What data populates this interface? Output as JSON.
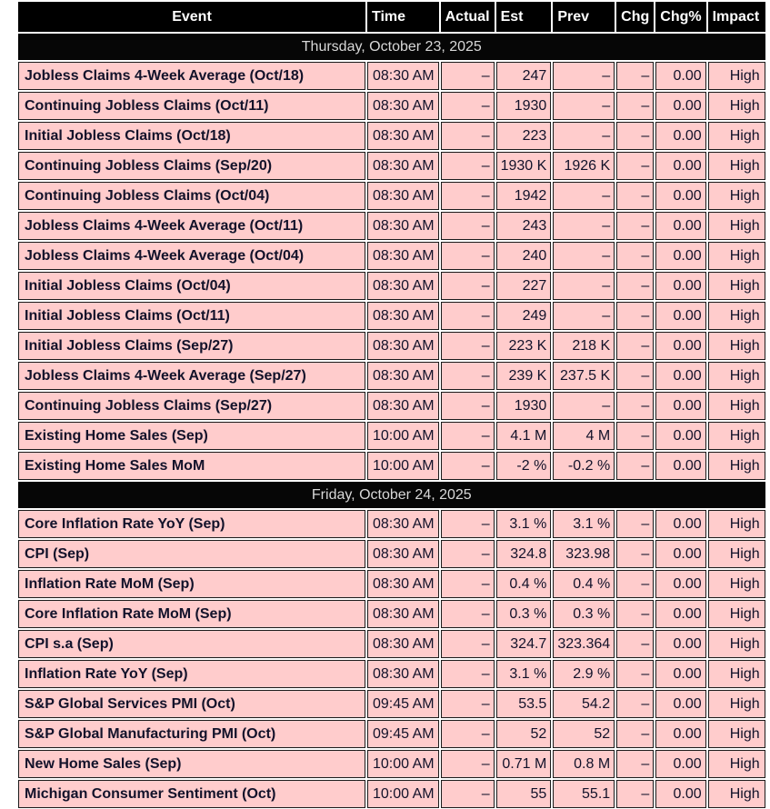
{
  "table": {
    "colors": {
      "header_bg": "#000000",
      "header_text": "#ffffff",
      "date_row_bg": "#060606",
      "date_row_text": "#d8d8d8",
      "row_bg": "#ffcccc",
      "row_text": "#12122a",
      "border": "#1b1b1b"
    },
    "columns": [
      {
        "key": "event",
        "label": "Event"
      },
      {
        "key": "time",
        "label": "Time"
      },
      {
        "key": "actual",
        "label": "Actual"
      },
      {
        "key": "est",
        "label": "Est"
      },
      {
        "key": "prev",
        "label": "Prev"
      },
      {
        "key": "chg",
        "label": "Chg"
      },
      {
        "key": "chg_pct",
        "label": "Chg%"
      },
      {
        "key": "impact",
        "label": "Impact"
      }
    ],
    "sections": [
      {
        "date_label": "Thursday, October 23, 2025",
        "rows": [
          {
            "event": "Jobless Claims 4-Week Average (Oct/18)",
            "time": "08:30 AM",
            "actual": "–",
            "est": "247",
            "prev": "–",
            "chg": "–",
            "chg_pct": "0.00",
            "impact": "High"
          },
          {
            "event": "Continuing Jobless Claims (Oct/11)",
            "time": "08:30 AM",
            "actual": "–",
            "est": "1930",
            "prev": "–",
            "chg": "–",
            "chg_pct": "0.00",
            "impact": "High"
          },
          {
            "event": "Initial Jobless Claims (Oct/18)",
            "time": "08:30 AM",
            "actual": "–",
            "est": "223",
            "prev": "–",
            "chg": "–",
            "chg_pct": "0.00",
            "impact": "High"
          },
          {
            "event": "Continuing Jobless Claims (Sep/20)",
            "time": "08:30 AM",
            "actual": "–",
            "est": "1930 K",
            "prev": "1926 K",
            "chg": "–",
            "chg_pct": "0.00",
            "impact": "High"
          },
          {
            "event": "Continuing Jobless Claims (Oct/04)",
            "time": "08:30 AM",
            "actual": "–",
            "est": "1942",
            "prev": "–",
            "chg": "–",
            "chg_pct": "0.00",
            "impact": "High"
          },
          {
            "event": "Jobless Claims 4-Week Average (Oct/11)",
            "time": "08:30 AM",
            "actual": "–",
            "est": "243",
            "prev": "–",
            "chg": "–",
            "chg_pct": "0.00",
            "impact": "High"
          },
          {
            "event": "Jobless Claims 4-Week Average (Oct/04)",
            "time": "08:30 AM",
            "actual": "–",
            "est": "240",
            "prev": "–",
            "chg": "–",
            "chg_pct": "0.00",
            "impact": "High"
          },
          {
            "event": "Initial Jobless Claims (Oct/04)",
            "time": "08:30 AM",
            "actual": "–",
            "est": "227",
            "prev": "–",
            "chg": "–",
            "chg_pct": "0.00",
            "impact": "High"
          },
          {
            "event": "Initial Jobless Claims (Oct/11)",
            "time": "08:30 AM",
            "actual": "–",
            "est": "249",
            "prev": "–",
            "chg": "–",
            "chg_pct": "0.00",
            "impact": "High"
          },
          {
            "event": "Initial Jobless Claims (Sep/27)",
            "time": "08:30 AM",
            "actual": "–",
            "est": "223 K",
            "prev": "218 K",
            "chg": "–",
            "chg_pct": "0.00",
            "impact": "High"
          },
          {
            "event": "Jobless Claims 4-Week Average (Sep/27)",
            "time": "08:30 AM",
            "actual": "–",
            "est": "239 K",
            "prev": "237.5 K",
            "chg": "–",
            "chg_pct": "0.00",
            "impact": "High"
          },
          {
            "event": "Continuing Jobless Claims (Sep/27)",
            "time": "08:30 AM",
            "actual": "–",
            "est": "1930",
            "prev": "–",
            "chg": "–",
            "chg_pct": "0.00",
            "impact": "High"
          },
          {
            "event": "Existing Home Sales (Sep)",
            "time": "10:00 AM",
            "actual": "–",
            "est": "4.1 M",
            "prev": "4 M",
            "chg": "–",
            "chg_pct": "0.00",
            "impact": "High"
          },
          {
            "event": "Existing Home Sales MoM",
            "time": "10:00 AM",
            "actual": "–",
            "est": "-2 %",
            "prev": "-0.2 %",
            "chg": "–",
            "chg_pct": "0.00",
            "impact": "High"
          }
        ]
      },
      {
        "date_label": "Friday, October 24, 2025",
        "rows": [
          {
            "event": "Core Inflation Rate YoY (Sep)",
            "time": "08:30 AM",
            "actual": "–",
            "est": "3.1 %",
            "prev": "3.1 %",
            "chg": "–",
            "chg_pct": "0.00",
            "impact": "High"
          },
          {
            "event": "CPI (Sep)",
            "time": "08:30 AM",
            "actual": "–",
            "est": "324.8",
            "prev": "323.98",
            "chg": "–",
            "chg_pct": "0.00",
            "impact": "High"
          },
          {
            "event": "Inflation Rate MoM (Sep)",
            "time": "08:30 AM",
            "actual": "–",
            "est": "0.4 %",
            "prev": "0.4 %",
            "chg": "–",
            "chg_pct": "0.00",
            "impact": "High"
          },
          {
            "event": "Core Inflation Rate MoM (Sep)",
            "time": "08:30 AM",
            "actual": "–",
            "est": "0.3 %",
            "prev": "0.3 %",
            "chg": "–",
            "chg_pct": "0.00",
            "impact": "High"
          },
          {
            "event": "CPI s.a (Sep)",
            "time": "08:30 AM",
            "actual": "–",
            "est": "324.7",
            "prev": "323.364",
            "chg": "–",
            "chg_pct": "0.00",
            "impact": "High"
          },
          {
            "event": "Inflation Rate YoY (Sep)",
            "time": "08:30 AM",
            "actual": "–",
            "est": "3.1 %",
            "prev": "2.9 %",
            "chg": "–",
            "chg_pct": "0.00",
            "impact": "High"
          },
          {
            "event": "S&P Global Services PMI (Oct)",
            "time": "09:45 AM",
            "actual": "–",
            "est": "53.5",
            "prev": "54.2",
            "chg": "–",
            "chg_pct": "0.00",
            "impact": "High"
          },
          {
            "event": "S&P Global Manufacturing PMI (Oct)",
            "time": "09:45 AM",
            "actual": "–",
            "est": "52",
            "prev": "52",
            "chg": "–",
            "chg_pct": "0.00",
            "impact": "High"
          },
          {
            "event": "New Home Sales (Sep)",
            "time": "10:00 AM",
            "actual": "–",
            "est": "0.71 M",
            "prev": "0.8 M",
            "chg": "–",
            "chg_pct": "0.00",
            "impact": "High"
          },
          {
            "event": "Michigan Consumer Sentiment (Oct)",
            "time": "10:00 AM",
            "actual": "–",
            "est": "55",
            "prev": "55.1",
            "chg": "–",
            "chg_pct": "0.00",
            "impact": "High"
          }
        ]
      }
    ]
  }
}
